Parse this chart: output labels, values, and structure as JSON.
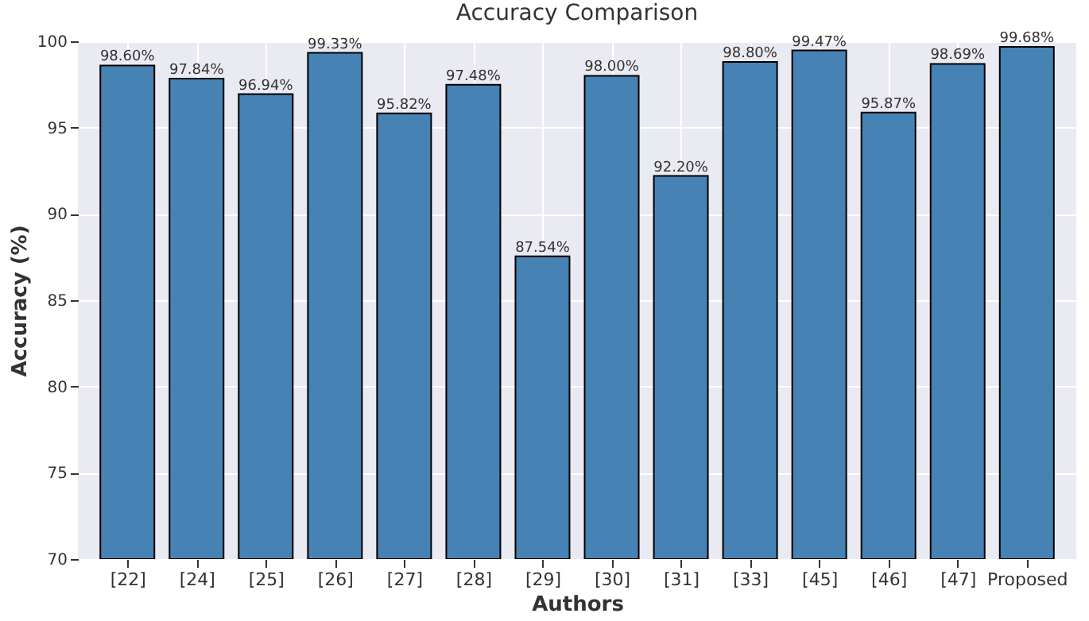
{
  "chart_data": {
    "type": "bar",
    "title": "Accuracy Comparison",
    "xlabel": "Authors",
    "ylabel": "Accuracy (%)",
    "categories": [
      "[22]",
      "[24]",
      "[25]",
      "[26]",
      "[27]",
      "[28]",
      "[29]",
      "[30]",
      "[31]",
      "[33]",
      "[45]",
      "[46]",
      "[47]",
      "Proposed"
    ],
    "values": [
      98.6,
      97.84,
      96.94,
      99.33,
      95.82,
      97.48,
      87.54,
      98.0,
      92.2,
      98.8,
      99.47,
      95.87,
      98.69,
      99.68
    ],
    "value_labels": [
      "98.60%",
      "97.84%",
      "96.94%",
      "99.33%",
      "95.82%",
      "97.48%",
      "87.54%",
      "98.00%",
      "92.20%",
      "98.80%",
      "99.47%",
      "95.87%",
      "98.69%",
      "99.68%"
    ],
    "color": "#4682b4",
    "ylim": [
      70,
      100
    ],
    "yticks": [
      70,
      75,
      80,
      85,
      90,
      95,
      100
    ],
    "grid": true
  }
}
